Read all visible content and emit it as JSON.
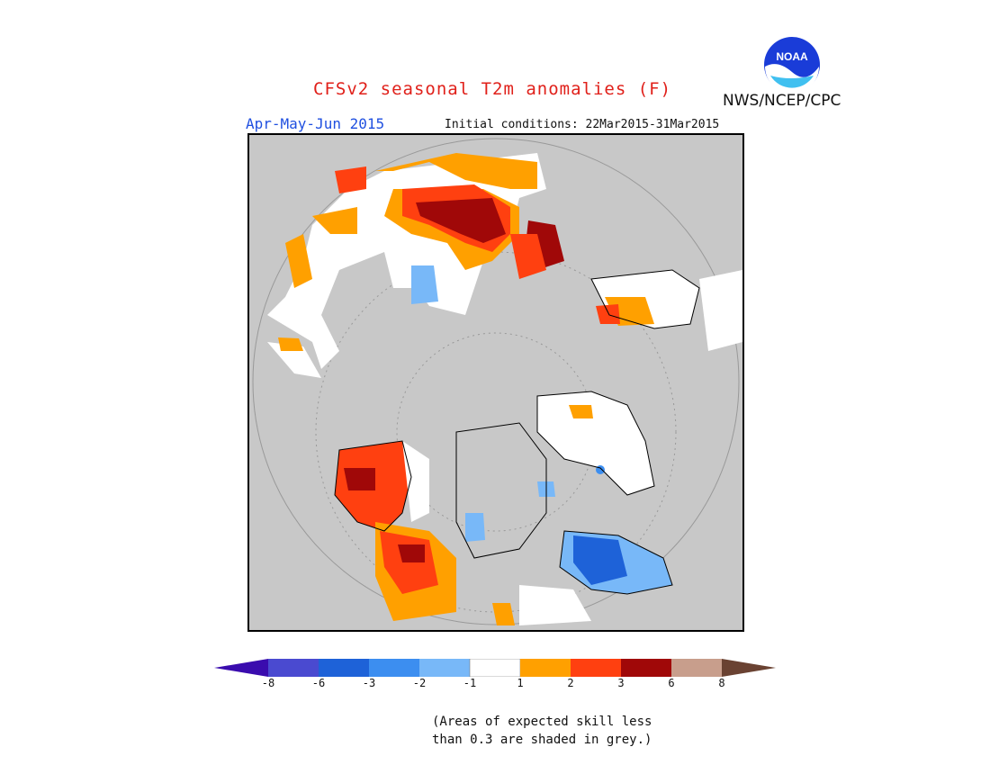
{
  "header": {
    "title": "CFSv2 seasonal T2m anomalies (F)",
    "season": "Apr-May-Jun 2015",
    "initial_conditions": "Initial conditions: 22Mar2015-31Mar2015",
    "org": "NWS/NCEP/CPC",
    "logo_text": "NOAA"
  },
  "colors": {
    "title": "#e0201a",
    "season": "#2050e0",
    "skill_grey": "#c8c8c8"
  },
  "legend": {
    "segments": [
      {
        "color": "#3a0cae"
      },
      {
        "color": "#4a4ad0"
      },
      {
        "color": "#1e62d8"
      },
      {
        "color": "#3c8ef0"
      },
      {
        "color": "#78b8f8"
      },
      {
        "color": "#ffffff"
      },
      {
        "color": "#ffa000"
      },
      {
        "color": "#ff4010"
      },
      {
        "color": "#a00808"
      },
      {
        "color": "#c89e8c"
      },
      {
        "color": "#6a4232"
      }
    ],
    "ticks": [
      "-8",
      "-6",
      "-3",
      "-2",
      "-1",
      "1",
      "2",
      "3",
      "6",
      "8"
    ]
  },
  "note": {
    "line1": "(Areas of expected skill less",
    "line2": "than 0.3 are shaded in grey.)"
  }
}
